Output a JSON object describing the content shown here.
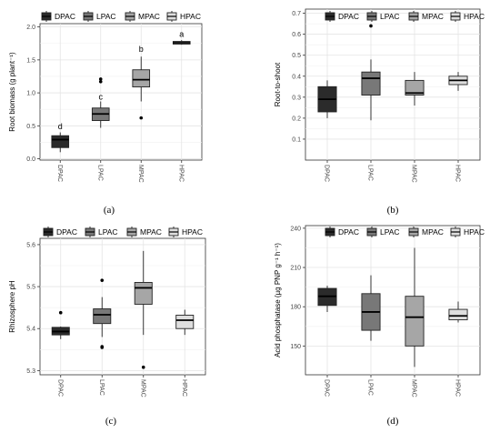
{
  "legend_labels": [
    "DPAC",
    "LPAC",
    "MPAC",
    "HPAC"
  ],
  "group_colors": [
    "#2b2b2b",
    "#787878",
    "#a6a6a6",
    "#dedede"
  ],
  "chart_data": [
    {
      "type": "boxplot",
      "panel_label": "(a)",
      "ylabel": "Root biomass (g plant⁻¹)",
      "categories": [
        "DPAC",
        "LPAC",
        "MPAC",
        "HPAC"
      ],
      "ylim": [
        -0.02,
        2.05
      ],
      "yticks": [
        0.0,
        0.5,
        1.0,
        1.5,
        2.0
      ],
      "ytick_labels": [
        "0.0",
        "0.5",
        "1.0",
        "1.5",
        "2.0"
      ],
      "boxes": [
        {
          "whisker_low": 0.1,
          "q1": 0.17,
          "median": 0.29,
          "q3": 0.35,
          "whisker_high": 0.4,
          "outliers": []
        },
        {
          "whisker_low": 0.47,
          "q1": 0.58,
          "median": 0.68,
          "q3": 0.77,
          "whisker_high": 0.87,
          "outliers": [
            1.17,
            1.21
          ]
        },
        {
          "whisker_low": 0.87,
          "q1": 1.09,
          "median": 1.2,
          "q3": 1.35,
          "whisker_high": 1.55,
          "outliers": [
            0.62
          ]
        },
        {
          "whisker_low": 1.73,
          "q1": 1.74,
          "median": 1.76,
          "q3": 1.78,
          "whisker_high": 1.8,
          "outliers": []
        }
      ],
      "annotations": [
        "d",
        "c",
        "b",
        "a"
      ],
      "annotation_y": [
        0.45,
        0.9,
        1.62,
        1.85
      ]
    },
    {
      "type": "boxplot",
      "panel_label": "(b)",
      "ylabel": "Root-to-shoot",
      "categories": [
        "DPAC",
        "LPAC",
        "MPAC",
        "HPAC"
      ],
      "ylim": [
        0.0,
        0.72
      ],
      "yticks": [
        0.1,
        0.2,
        0.3,
        0.4,
        0.5,
        0.6,
        0.7
      ],
      "ytick_labels": [
        "0.1",
        "0.2",
        "0.3",
        "0.4",
        "0.5",
        "0.6",
        "0.7"
      ],
      "boxes": [
        {
          "whisker_low": 0.2,
          "q1": 0.23,
          "median": 0.29,
          "q3": 0.35,
          "whisker_high": 0.38,
          "outliers": []
        },
        {
          "whisker_low": 0.19,
          "q1": 0.31,
          "median": 0.39,
          "q3": 0.42,
          "whisker_high": 0.48,
          "outliers": [
            0.64
          ]
        },
        {
          "whisker_low": 0.26,
          "q1": 0.31,
          "median": 0.32,
          "q3": 0.38,
          "whisker_high": 0.42,
          "outliers": []
        },
        {
          "whisker_low": 0.33,
          "q1": 0.36,
          "median": 0.38,
          "q3": 0.4,
          "whisker_high": 0.42,
          "outliers": []
        }
      ],
      "annotations": [],
      "annotation_y": []
    },
    {
      "type": "boxplot",
      "panel_label": "(c)",
      "ylabel": "Rhizosphere pH",
      "categories": [
        "DPAC",
        "LPAC",
        "MPAC",
        "HPAC"
      ],
      "ylim": [
        5.29,
        5.615
      ],
      "yticks": [
        5.3,
        5.4,
        5.5,
        5.6
      ],
      "ytick_labels": [
        "5.3",
        "5.4",
        "5.5",
        "5.6"
      ],
      "boxes": [
        {
          "whisker_low": 5.375,
          "q1": 5.385,
          "median": 5.393,
          "q3": 5.403,
          "whisker_high": 5.405,
          "outliers": [
            5.438
          ]
        },
        {
          "whisker_low": 5.38,
          "q1": 5.412,
          "median": 5.433,
          "q3": 5.447,
          "whisker_high": 5.475,
          "outliers": [
            5.515,
            5.357,
            5.355
          ]
        },
        {
          "whisker_low": 5.385,
          "q1": 5.458,
          "median": 5.497,
          "q3": 5.51,
          "whisker_high": 5.585,
          "outliers": [
            5.308
          ]
        },
        {
          "whisker_low": 5.385,
          "q1": 5.4,
          "median": 5.42,
          "q3": 5.432,
          "whisker_high": 5.445,
          "outliers": []
        }
      ],
      "annotations": [],
      "annotation_y": []
    },
    {
      "type": "boxplot",
      "panel_label": "(d)",
      "ylabel": "Acid phosphatase (µg PNP g⁻¹ h⁻¹)",
      "categories": [
        "DPAC",
        "LPAC",
        "MPAC",
        "HPAC"
      ],
      "ylim": [
        128,
        242
      ],
      "yticks": [
        150,
        180,
        210,
        240
      ],
      "ytick_labels": [
        "150",
        "180",
        "210",
        "240"
      ],
      "boxes": [
        {
          "whisker_low": 176,
          "q1": 181,
          "median": 188,
          "q3": 194,
          "whisker_high": 196,
          "outliers": []
        },
        {
          "whisker_low": 154,
          "q1": 162,
          "median": 176,
          "q3": 190,
          "whisker_high": 204,
          "outliers": []
        },
        {
          "whisker_low": 134,
          "q1": 150,
          "median": 172,
          "q3": 188,
          "whisker_high": 225,
          "outliers": []
        },
        {
          "whisker_low": 168,
          "q1": 170,
          "median": 173,
          "q3": 178,
          "whisker_high": 184,
          "outliers": []
        }
      ],
      "annotations": [],
      "annotation_y": []
    }
  ]
}
